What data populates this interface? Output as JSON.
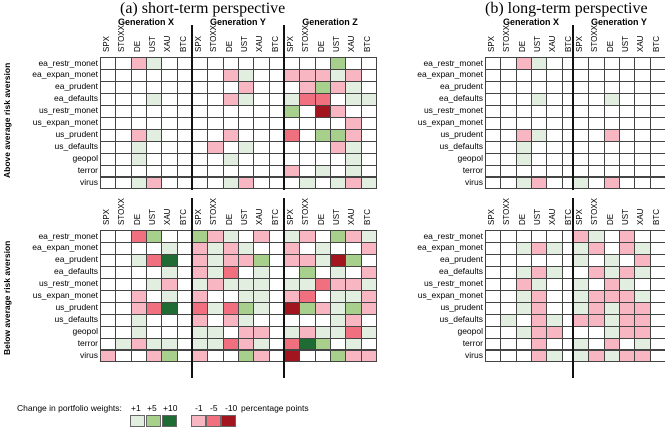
{
  "chart_data": {
    "type": "heatmap",
    "colors": {
      "0": "#ffffff",
      "1": "#e2eedf",
      "2": "#a8d08d",
      "3": "#1e6b34",
      "-1": "#f7b6c2",
      "-2": "#f0707f",
      "-3": "#a3151e"
    },
    "columns": [
      "SPX",
      "STOXX",
      "DE",
      "UST",
      "XAU",
      "BTC"
    ],
    "rows": [
      "ea_restr_monet",
      "ea_expan_monet",
      "ea_prudent",
      "ea_defaults",
      "us_restr_monet",
      "us_expan_monet",
      "us_prudent",
      "us_defaults",
      "geopol",
      "terror",
      "virus"
    ],
    "row_group_labels": [
      "Above average risk aversion",
      "Below average risk aversion"
    ],
    "legend": {
      "label": "Change in portfolio weights:",
      "positive": [
        "+1",
        "+5",
        "+10"
      ],
      "negative": [
        "-1",
        "-5",
        "-10"
      ],
      "unit": "percentage points",
      "positive_values": [
        1,
        5,
        10
      ],
      "negative_values": [
        -1,
        -5,
        -10
      ]
    },
    "panels": [
      {
        "title": "(a) short-term perspective",
        "generations": [
          {
            "name": "Generation X",
            "above": [
              [
                0,
                0,
                -1,
                1,
                0,
                0
              ],
              [
                0,
                0,
                0,
                0,
                0,
                0
              ],
              [
                0,
                0,
                0,
                0,
                0,
                0
              ],
              [
                0,
                0,
                0,
                1,
                0,
                0
              ],
              [
                0,
                0,
                0,
                0,
                0,
                0
              ],
              [
                0,
                0,
                0,
                0,
                0,
                0
              ],
              [
                0,
                0,
                -1,
                1,
                0,
                0
              ],
              [
                0,
                0,
                1,
                0,
                0,
                0
              ],
              [
                0,
                0,
                1,
                0,
                0,
                0
              ],
              [
                0,
                0,
                0,
                0,
                0,
                0
              ],
              [
                0,
                0,
                1,
                -1,
                0,
                0
              ]
            ],
            "below": [
              [
                0,
                0,
                -2,
                2,
                0,
                0
              ],
              [
                0,
                0,
                0,
                0,
                1,
                0
              ],
              [
                0,
                0,
                1,
                -2,
                3,
                0
              ],
              [
                0,
                0,
                0,
                0,
                1,
                0
              ],
              [
                0,
                0,
                0,
                1,
                -1,
                0
              ],
              [
                0,
                0,
                -1,
                0,
                1,
                0
              ],
              [
                0,
                0,
                -1,
                -2,
                3,
                0
              ],
              [
                0,
                0,
                1,
                0,
                0,
                0
              ],
              [
                0,
                0,
                1,
                0,
                0,
                0
              ],
              [
                0,
                1,
                -1,
                1,
                1,
                0
              ],
              [
                -1,
                0,
                0,
                -1,
                2,
                0
              ]
            ]
          },
          {
            "name": "Generation Y",
            "above": [
              [
                0,
                0,
                0,
                0,
                0,
                0
              ],
              [
                0,
                0,
                -1,
                1,
                0,
                0
              ],
              [
                0,
                0,
                0,
                -1,
                0,
                0
              ],
              [
                0,
                0,
                -1,
                1,
                0,
                0
              ],
              [
                0,
                0,
                0,
                0,
                0,
                0
              ],
              [
                0,
                0,
                0,
                0,
                0,
                0
              ],
              [
                0,
                0,
                -1,
                0,
                0,
                0
              ],
              [
                0,
                -1,
                0,
                1,
                0,
                0
              ],
              [
                0,
                0,
                1,
                0,
                0,
                0
              ],
              [
                0,
                0,
                0,
                0,
                0,
                0
              ],
              [
                0,
                0,
                1,
                -1,
                0,
                0
              ]
            ],
            "below": [
              [
                2,
                -1,
                1,
                0,
                -1,
                0
              ],
              [
                -1,
                1,
                -1,
                1,
                0,
                0
              ],
              [
                -1,
                1,
                -1,
                -1,
                2,
                0
              ],
              [
                -1,
                1,
                -2,
                0,
                1,
                0
              ],
              [
                1,
                -1,
                1,
                1,
                1,
                0
              ],
              [
                -1,
                0,
                0,
                1,
                1,
                0
              ],
              [
                -2,
                1,
                -2,
                2,
                1,
                0
              ],
              [
                -1,
                0,
                -1,
                1,
                0,
                0
              ],
              [
                1,
                1,
                0,
                -1,
                -1,
                0
              ],
              [
                1,
                1,
                -2,
                -1,
                1,
                0
              ],
              [
                -1,
                0,
                0,
                2,
                -1,
                0
              ]
            ]
          },
          {
            "name": "Generation Z",
            "above": [
              [
                0,
                0,
                0,
                2,
                0,
                0
              ],
              [
                -1,
                -1,
                -1,
                1,
                -1,
                0
              ],
              [
                0,
                -1,
                2,
                -1,
                1,
                0
              ],
              [
                1,
                -2,
                -2,
                0,
                1,
                1
              ],
              [
                2,
                0,
                -3,
                -1,
                0,
                0
              ],
              [
                0,
                0,
                0,
                0,
                -1,
                0
              ],
              [
                -2,
                0,
                2,
                2,
                -1,
                0
              ],
              [
                0,
                0,
                0,
                -1,
                1,
                0
              ],
              [
                0,
                0,
                0,
                0,
                1,
                0
              ],
              [
                -1,
                0,
                1,
                0,
                1,
                0
              ],
              [
                0,
                1,
                0,
                1,
                -1,
                1
              ]
            ],
            "below": [
              [
                1,
                -1,
                0,
                2,
                -1,
                1
              ],
              [
                -1,
                0,
                1,
                0,
                0,
                -1
              ],
              [
                -1,
                -1,
                1,
                -3,
                2,
                0
              ],
              [
                0,
                2,
                0,
                1,
                0,
                -1
              ],
              [
                1,
                1,
                -2,
                -1,
                -1,
                1
              ],
              [
                -1,
                -2,
                0,
                1,
                1,
                -1
              ],
              [
                -3,
                2,
                -1,
                1,
                2,
                -1
              ],
              [
                0,
                0,
                0,
                1,
                -1,
                0
              ],
              [
                1,
                -1,
                1,
                1,
                -2,
                1
              ],
              [
                -2,
                3,
                2,
                0,
                1,
                0
              ],
              [
                -3,
                0,
                0,
                2,
                -1,
                -1
              ]
            ]
          }
        ]
      },
      {
        "title": "(b) long-term perspective",
        "generations": [
          {
            "name": "Generation X",
            "above": [
              [
                0,
                0,
                -1,
                1,
                0,
                0
              ],
              [
                0,
                0,
                0,
                0,
                0,
                0
              ],
              [
                0,
                0,
                0,
                0,
                0,
                0
              ],
              [
                0,
                0,
                0,
                1,
                0,
                0
              ],
              [
                0,
                0,
                0,
                0,
                0,
                0
              ],
              [
                0,
                0,
                0,
                0,
                0,
                0
              ],
              [
                0,
                0,
                -1,
                1,
                0,
                0
              ],
              [
                0,
                0,
                1,
                0,
                0,
                0
              ],
              [
                0,
                0,
                1,
                0,
                0,
                0
              ],
              [
                0,
                0,
                0,
                0,
                0,
                0
              ],
              [
                0,
                0,
                1,
                -1,
                0,
                0
              ]
            ],
            "below": [
              [
                0,
                0,
                0,
                0,
                0,
                0
              ],
              [
                0,
                0,
                1,
                -1,
                1,
                0
              ],
              [
                0,
                0,
                0,
                0,
                0,
                0
              ],
              [
                0,
                0,
                1,
                -1,
                1,
                0
              ],
              [
                0,
                0,
                -1,
                1,
                0,
                0
              ],
              [
                0,
                0,
                1,
                -1,
                0,
                0
              ],
              [
                0,
                0,
                1,
                -1,
                0,
                0
              ],
              [
                0,
                1,
                0,
                -1,
                1,
                0
              ],
              [
                0,
                0,
                1,
                -1,
                -1,
                0
              ],
              [
                0,
                0,
                0,
                -1,
                0,
                0
              ],
              [
                0,
                0,
                0,
                -1,
                1,
                0
              ]
            ]
          },
          {
            "name": "Generation Y",
            "above": [
              [
                0,
                0,
                0,
                0,
                0,
                0
              ],
              [
                0,
                0,
                0,
                0,
                0,
                0
              ],
              [
                0,
                0,
                0,
                0,
                0,
                0
              ],
              [
                0,
                0,
                1,
                0,
                0,
                0
              ],
              [
                0,
                0,
                0,
                0,
                0,
                0
              ],
              [
                0,
                0,
                0,
                0,
                0,
                0
              ],
              [
                0,
                0,
                -1,
                0,
                0,
                0
              ],
              [
                0,
                0,
                0,
                0,
                0,
                0
              ],
              [
                0,
                0,
                0,
                0,
                0,
                0
              ],
              [
                0,
                0,
                0,
                0,
                0,
                0
              ],
              [
                1,
                0,
                -1,
                0,
                0,
                0
              ]
            ],
            "below": [
              [
                -1,
                1,
                0,
                -1,
                0,
                0
              ],
              [
                1,
                -1,
                0,
                -1,
                1,
                0
              ],
              [
                1,
                0,
                1,
                0,
                -1,
                0
              ],
              [
                0,
                -1,
                1,
                -1,
                1,
                0
              ],
              [
                1,
                0,
                -1,
                1,
                0,
                0
              ],
              [
                1,
                -1,
                -1,
                -1,
                1,
                0
              ],
              [
                1,
                -1,
                1,
                -1,
                -1,
                0
              ],
              [
                -1,
                -1,
                1,
                -1,
                -1,
                0
              ],
              [
                0,
                0,
                1,
                -1,
                -1,
                0
              ],
              [
                1,
                0,
                -1,
                0,
                1,
                0
              ],
              [
                1,
                -1,
                1,
                -1,
                -1,
                0
              ]
            ]
          }
        ]
      }
    ]
  }
}
